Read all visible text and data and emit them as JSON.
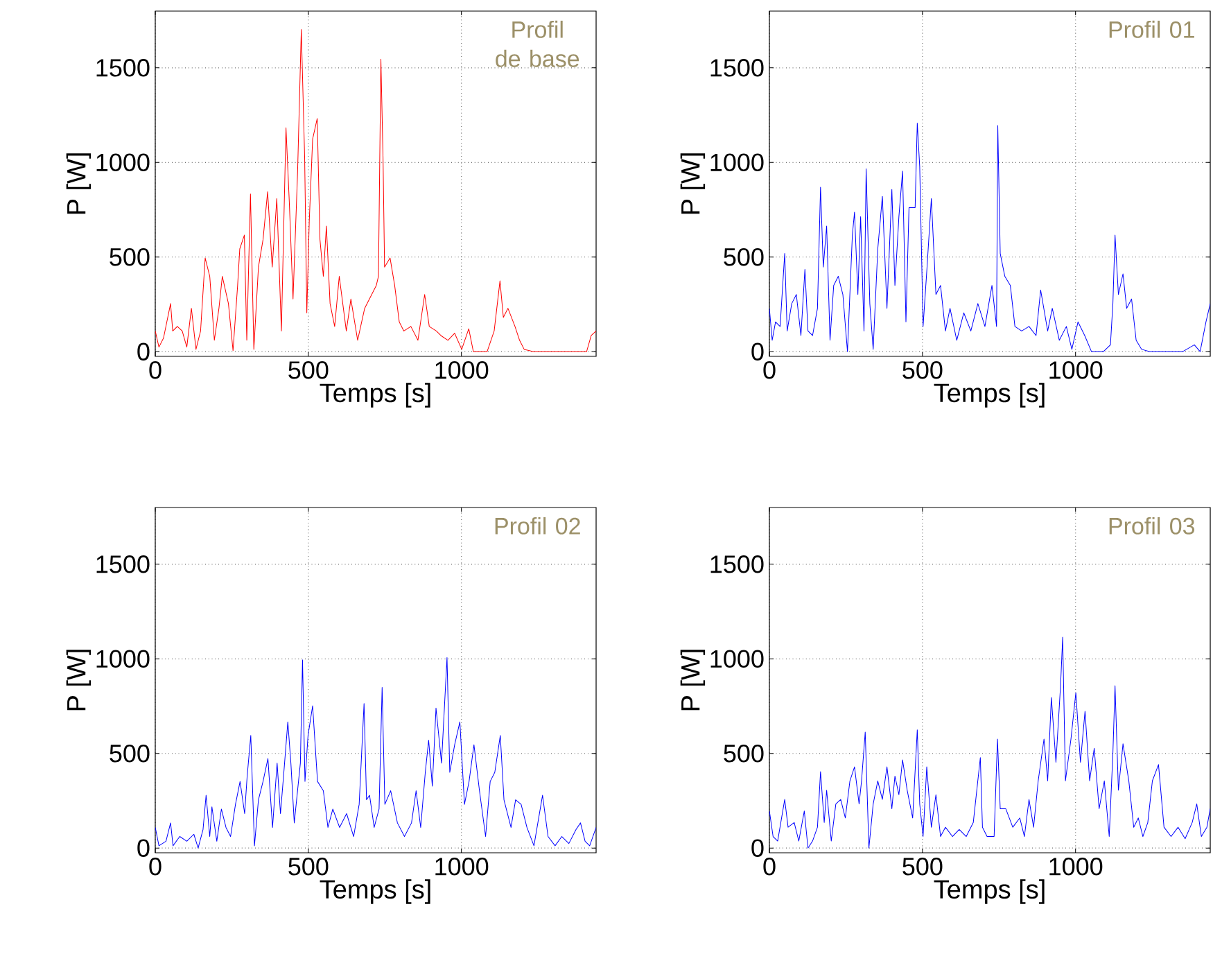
{
  "chart_data": [
    {
      "type": "line",
      "xlabel": "Temps [s]",
      "ylabel": "P [W]",
      "annotations": [
        "Profil de base"
      ],
      "xlim": [
        0,
        1440
      ],
      "ylim": [
        -25,
        1800
      ],
      "xticks": [
        0,
        500,
        1000
      ],
      "yticks": [
        0,
        500,
        1000,
        1500
      ],
      "grid": true,
      "line_style": "solid",
      "marker": "none",
      "x": [
        0,
        12,
        27,
        50,
        57,
        72,
        88,
        103,
        118,
        133,
        148,
        163,
        178,
        193,
        208,
        219,
        239,
        254,
        269,
        276,
        291,
        299,
        311,
        322,
        337,
        352,
        367,
        382,
        397,
        412,
        420,
        427,
        438,
        450,
        465,
        477,
        488,
        495,
        503,
        514,
        529,
        538,
        549,
        559,
        571,
        586,
        601,
        624,
        639,
        661,
        684,
        707,
        722,
        729,
        737,
        744,
        749,
        767,
        782,
        797,
        812,
        835,
        858,
        880,
        895,
        918,
        933,
        956,
        978,
        1001,
        1024,
        1039,
        1054,
        1084,
        1107,
        1126,
        1137,
        1152,
        1175,
        1190,
        1205,
        1235,
        1296,
        1356,
        1386,
        1409,
        1424,
        1440
      ],
      "series": [
        {
          "color": "#ff0000",
          "values": [
            109,
            24,
            72,
            254,
            109,
            133,
            109,
            24,
            229,
            12,
            109,
            495,
            398,
            60,
            229,
            398,
            254,
            5,
            350,
            543,
            616,
            60,
            833,
            12,
            447,
            592,
            845,
            447,
            809,
            109,
            688,
            1183,
            785,
            278,
            954,
            1703,
            1026,
            205,
            688,
            1123,
            1232,
            592,
            398,
            664,
            254,
            133,
            398,
            109,
            278,
            60,
            229,
            302,
            350,
            398,
            1546,
            1026,
            447,
            495,
            350,
            157,
            109,
            133,
            60,
            302,
            133,
            109,
            85,
            60,
            97,
            12,
            121,
            0,
            0,
            0,
            109,
            374,
            181,
            229,
            133,
            60,
            12,
            0,
            0,
            0,
            0,
            0,
            85,
            109
          ]
        }
      ]
    },
    {
      "type": "line",
      "xlabel": "Temps [s]",
      "ylabel": "P [W]",
      "annotations": [
        "Profil 01"
      ],
      "xlim": [
        0,
        1440
      ],
      "ylim": [
        -25,
        1800
      ],
      "xticks": [
        0,
        500,
        1000
      ],
      "yticks": [
        0,
        500,
        1000,
        1500
      ],
      "grid": true,
      "line_style": "solid",
      "marker": "none",
      "x": [
        0,
        9,
        20,
        35,
        50,
        58,
        73,
        88,
        103,
        116,
        126,
        141,
        157,
        167,
        176,
        187,
        198,
        210,
        225,
        240,
        255,
        271,
        278,
        289,
        298,
        309,
        316,
        328,
        339,
        354,
        369,
        384,
        400,
        410,
        423,
        435,
        446,
        456,
        476,
        483,
        491,
        502,
        514,
        529,
        544,
        559,
        575,
        590,
        612,
        635,
        658,
        681,
        704,
        727,
        742,
        746,
        754,
        769,
        787,
        802,
        824,
        848,
        871,
        886,
        909,
        924,
        947,
        970,
        988,
        1008,
        1030,
        1052,
        1091,
        1114,
        1122,
        1129,
        1140,
        1155,
        1167,
        1183,
        1198,
        1216,
        1243,
        1289,
        1350,
        1388,
        1407,
        1426,
        1440
      ],
      "series": [
        {
          "color": "#0000ff",
          "values": [
            229,
            60,
            157,
            133,
            519,
            109,
            254,
            302,
            85,
            435,
            109,
            85,
            229,
            869,
            447,
            664,
            60,
            350,
            398,
            302,
            0,
            616,
            737,
            302,
            713,
            109,
            966,
            254,
            12,
            543,
            821,
            229,
            857,
            350,
            713,
            954,
            157,
            761,
            761,
            1208,
            978,
            133,
            423,
            809,
            302,
            350,
            109,
            229,
            60,
            205,
            109,
            254,
            133,
            350,
            133,
            1195,
            519,
            398,
            350,
            133,
            109,
            133,
            85,
            326,
            109,
            229,
            60,
            133,
            12,
            157,
            85,
            0,
            0,
            36,
            254,
            616,
            302,
            411,
            229,
            278,
            60,
            12,
            0,
            0,
            0,
            36,
            0,
            157,
            254
          ]
        }
      ]
    },
    {
      "type": "line",
      "xlabel": "Temps [s]",
      "ylabel": "P [W]",
      "annotations": [
        "Profil 02"
      ],
      "xlim": [
        0,
        1440
      ],
      "ylim": [
        -25,
        1800
      ],
      "xticks": [
        0,
        500,
        1000
      ],
      "yticks": [
        0,
        500,
        1000,
        1500
      ],
      "grid": true,
      "line_style": "solid",
      "marker": "none",
      "x": [
        0,
        12,
        35,
        50,
        58,
        80,
        103,
        126,
        140,
        156,
        166,
        178,
        185,
        201,
        216,
        231,
        246,
        262,
        277,
        292,
        300,
        312,
        324,
        337,
        352,
        368,
        383,
        398,
        409,
        420,
        433,
        443,
        454,
        474,
        481,
        489,
        499,
        514,
        530,
        549,
        564,
        580,
        602,
        625,
        648,
        666,
        682,
        690,
        700,
        715,
        731,
        741,
        750,
        769,
        791,
        814,
        837,
        852,
        867,
        882,
        893,
        905,
        917,
        935,
        953,
        962,
        978,
        995,
        1010,
        1025,
        1041,
        1059,
        1079,
        1094,
        1109,
        1127,
        1139,
        1162,
        1177,
        1195,
        1214,
        1237,
        1265,
        1283,
        1306,
        1328,
        1351,
        1374,
        1389,
        1404,
        1419,
        1440
      ],
      "series": [
        {
          "color": "#0000ff",
          "values": [
            109,
            12,
            36,
            133,
            12,
            61,
            36,
            73,
            0,
            97,
            279,
            61,
            218,
            36,
            206,
            109,
            61,
            231,
            352,
            182,
            376,
            595,
            12,
            255,
            352,
            473,
            109,
            449,
            182,
            400,
            667,
            449,
            133,
            449,
            995,
            352,
            595,
            752,
            352,
            303,
            109,
            206,
            109,
            182,
            61,
            231,
            764,
            255,
            279,
            109,
            206,
            849,
            231,
            303,
            133,
            61,
            133,
            303,
            109,
            400,
            570,
            327,
            740,
            449,
            1007,
            400,
            546,
            667,
            231,
            352,
            546,
            303,
            61,
            352,
            400,
            595,
            255,
            109,
            255,
            231,
            109,
            12,
            279,
            61,
            12,
            61,
            24,
            97,
            133,
            36,
            12,
            109
          ]
        }
      ]
    },
    {
      "type": "line",
      "xlabel": "Temps [s]",
      "ylabel": "P [W]",
      "annotations": [
        "Profil 03"
      ],
      "xlim": [
        0,
        1440
      ],
      "ylim": [
        -25,
        1800
      ],
      "xticks": [
        0,
        500,
        1000
      ],
      "yticks": [
        0,
        500,
        1000,
        1500
      ],
      "grid": true,
      "line_style": "solid",
      "marker": "none",
      "x": [
        0,
        12,
        27,
        50,
        61,
        81,
        96,
        114,
        126,
        141,
        157,
        167,
        179,
        187,
        202,
        217,
        233,
        248,
        263,
        278,
        293,
        301,
        313,
        325,
        339,
        354,
        369,
        384,
        400,
        410,
        423,
        435,
        450,
        468,
        483,
        491,
        502,
        514,
        529,
        544,
        559,
        575,
        598,
        620,
        643,
        666,
        689,
        696,
        711,
        734,
        745,
        754,
        772,
        795,
        818,
        833,
        848,
        863,
        878,
        897,
        909,
        921,
        936,
        951,
        958,
        967,
        985,
        1001,
        1016,
        1031,
        1046,
        1061,
        1077,
        1094,
        1110,
        1122,
        1129,
        1140,
        1155,
        1174,
        1190,
        1205,
        1220,
        1236,
        1251,
        1271,
        1289,
        1312,
        1335,
        1358,
        1381,
        1396,
        1411,
        1429,
        1440
      ],
      "series": [
        {
          "color": "#0000ff",
          "values": [
            196,
            61,
            37,
            257,
            110,
            135,
            37,
            196,
            0,
            37,
            110,
            404,
            135,
            306,
            37,
            233,
            257,
            159,
            355,
            429,
            233,
            355,
            613,
            0,
            233,
            355,
            257,
            429,
            208,
            380,
            282,
            466,
            306,
            159,
            625,
            233,
            61,
            429,
            110,
            282,
            61,
            110,
            61,
            98,
            61,
            135,
            478,
            110,
            61,
            61,
            576,
            208,
            208,
            110,
            159,
            61,
            257,
            110,
            355,
            576,
            355,
            796,
            453,
            858,
            1115,
            355,
            576,
            821,
            453,
            723,
            355,
            527,
            208,
            355,
            61,
            502,
            858,
            306,
            551,
            355,
            110,
            159,
            61,
            135,
            355,
            441,
            110,
            61,
            110,
            49,
            135,
            233,
            61,
            110,
            208
          ]
        }
      ]
    }
  ]
}
